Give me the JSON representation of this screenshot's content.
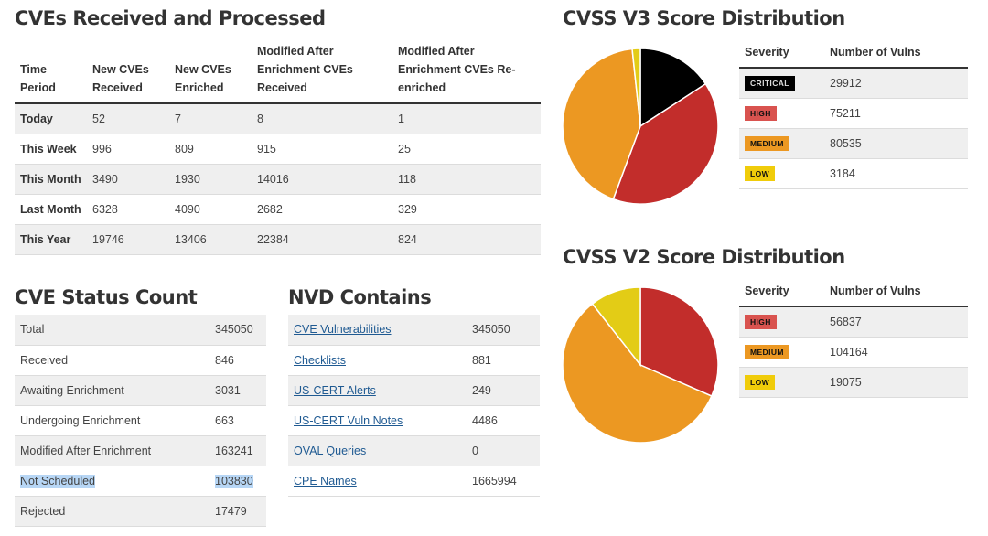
{
  "cves_received": {
    "title": "CVEs Received and Processed",
    "headers": [
      "Time Period",
      "New CVEs Received",
      "New CVEs Enriched",
      "Modified After Enrichment CVEs Received",
      "Modified After Enrichment CVEs Re-enriched"
    ],
    "rows": [
      {
        "period": "Today",
        "values": [
          "52",
          "7",
          "8",
          "1"
        ]
      },
      {
        "period": "This Week",
        "values": [
          "996",
          "809",
          "915",
          "25"
        ]
      },
      {
        "period": "This Month",
        "values": [
          "3490",
          "1930",
          "14016",
          "118"
        ]
      },
      {
        "period": "Last Month",
        "values": [
          "6328",
          "4090",
          "2682",
          "329"
        ]
      },
      {
        "period": "This Year",
        "values": [
          "19746",
          "13406",
          "22384",
          "824"
        ]
      }
    ]
  },
  "status_count": {
    "title": "CVE Status Count",
    "rows": [
      {
        "label": "Total",
        "value": "345050"
      },
      {
        "label": "Received",
        "value": "846"
      },
      {
        "label": "Awaiting Enrichment",
        "value": "3031"
      },
      {
        "label": "Undergoing Enrichment",
        "value": "663"
      },
      {
        "label": "Modified After Enrichment",
        "value": "163241"
      },
      {
        "label": "Not Scheduled",
        "value": "103830"
      },
      {
        "label": "Rejected",
        "value": "17479"
      }
    ]
  },
  "nvd_contains": {
    "title": "NVD Contains",
    "rows": [
      {
        "label": "CVE Vulnerabilities",
        "value": "345050"
      },
      {
        "label": "Checklists",
        "value": "881"
      },
      {
        "label": "US-CERT Alerts",
        "value": "249"
      },
      {
        "label": "US-CERT Vuln Notes",
        "value": "4486"
      },
      {
        "label": "OVAL Queries",
        "value": "0"
      },
      {
        "label": "CPE Names",
        "value": "1665994"
      }
    ]
  },
  "colors": {
    "critical": "#000000",
    "high": "#c22d2b",
    "high_badge": "#d9534f",
    "medium": "#ec9822",
    "low": "#e3cc16",
    "low_badge": "#f0cc0a"
  },
  "chart_data": [
    {
      "type": "pie",
      "title": "CVSS V3 Score Distribution",
      "table_headers": [
        "Severity",
        "Number of Vulns"
      ],
      "categories": [
        "CRITICAL",
        "HIGH",
        "MEDIUM",
        "LOW"
      ],
      "values": [
        29912,
        75211,
        80535,
        3184
      ],
      "colors": [
        "#000000",
        "#c22d2b",
        "#ec9822",
        "#e3cc16"
      ],
      "badge_colors": [
        "#000000",
        "#d9534f",
        "#ec9822",
        "#f0cc0a"
      ],
      "badge_text_colors": [
        "#dddddd",
        "#111111",
        "#111111",
        "#111111"
      ],
      "start": "top",
      "direction": "clockwise"
    },
    {
      "type": "pie",
      "title": "CVSS V2 Score Distribution",
      "table_headers": [
        "Severity",
        "Number of Vulns"
      ],
      "categories": [
        "HIGH",
        "MEDIUM",
        "LOW"
      ],
      "values": [
        56837,
        104164,
        19075
      ],
      "colors": [
        "#c22d2b",
        "#ec9822",
        "#e3cc16"
      ],
      "badge_colors": [
        "#d9534f",
        "#ec9822",
        "#f0cc0a"
      ],
      "badge_text_colors": [
        "#111111",
        "#111111",
        "#111111"
      ],
      "start": "top",
      "direction": "clockwise"
    }
  ]
}
